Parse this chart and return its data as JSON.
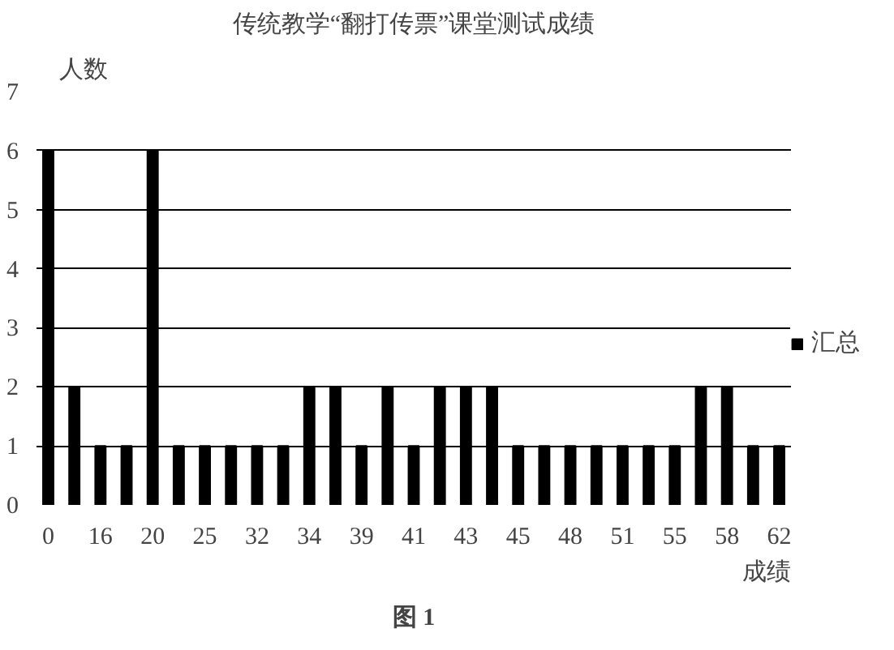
{
  "chart_data": {
    "type": "bar",
    "title": "传统教学“翻打传票”课堂测试成绩",
    "xlabel": "成绩",
    "ylabel": "人数",
    "categories": [
      "0",
      null,
      "16",
      null,
      "20",
      null,
      "25",
      null,
      "32",
      null,
      "34",
      null,
      "39",
      null,
      "41",
      null,
      "43",
      null,
      "45",
      null,
      "48",
      null,
      "51",
      null,
      "55",
      null,
      "58",
      null,
      "62"
    ],
    "series": [
      {
        "name": "汇总",
        "color": "#000000",
        "values": [
          6,
          2,
          1,
          1,
          6,
          1,
          1,
          1,
          1,
          1,
          2,
          2,
          1,
          2,
          1,
          2,
          2,
          2,
          1,
          1,
          1,
          1,
          1,
          1,
          1,
          2,
          2,
          1,
          1
        ]
      }
    ],
    "ylim": [
      0,
      7
    ],
    "yticks": [
      0,
      1,
      2,
      3,
      4,
      5,
      6,
      7
    ],
    "grid": "y",
    "legend": "right",
    "annotations": [
      "图 1"
    ]
  }
}
